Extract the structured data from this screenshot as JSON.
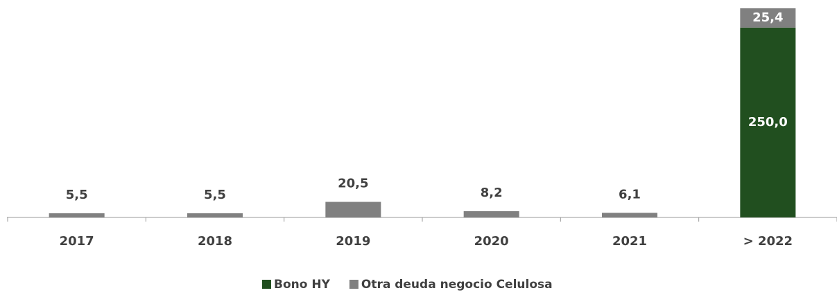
{
  "chart_data": {
    "type": "stacked_bar",
    "categories": [
      "2017",
      "2018",
      "2019",
      "2020",
      "2021",
      "> 2022"
    ],
    "series": [
      {
        "name": "Bono HY",
        "color": "#214f1f",
        "values": [
          null,
          null,
          null,
          null,
          null,
          250.0
        ],
        "value_labels": [
          null,
          null,
          null,
          null,
          null,
          "250,0"
        ]
      },
      {
        "name": "Otra deuda negocio Celulosa",
        "color": "#808080",
        "values": [
          5.5,
          5.5,
          20.5,
          8.2,
          6.1,
          25.4
        ],
        "value_labels": [
          "5,5",
          "5,5",
          "20,5",
          "8,2",
          "6,1",
          "25,4"
        ]
      }
    ]
  }
}
